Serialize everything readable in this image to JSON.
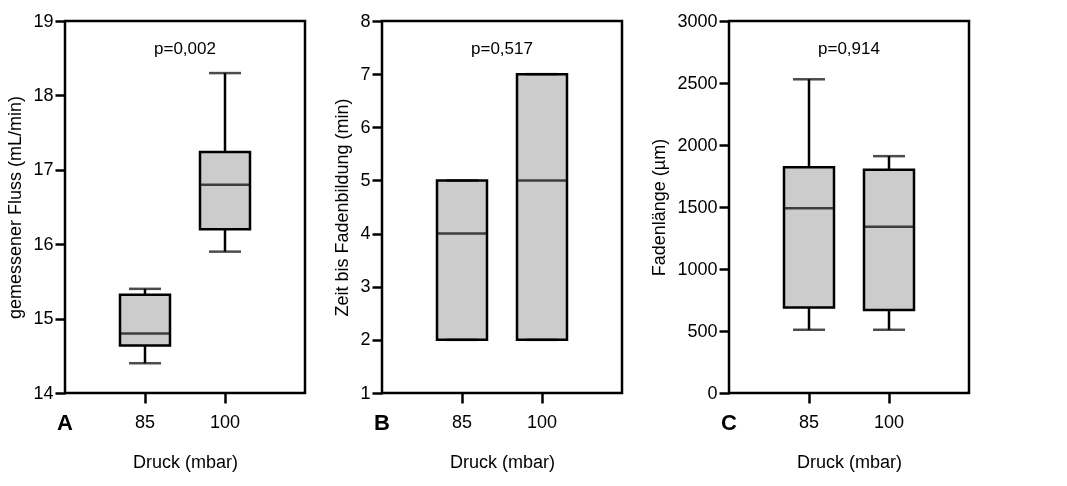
{
  "chart_data": [
    {
      "type": "box",
      "categories": [
        "85",
        "100"
      ],
      "xlabel": "Druck (mbar)",
      "ylabel": "gemessener Fluss (mL/min)",
      "ylim": [
        14,
        19
      ],
      "yticks": [
        14,
        15,
        16,
        17,
        18,
        19
      ],
      "grid": false,
      "annotations": [
        "p=0,002",
        "A"
      ],
      "series": [
        {
          "color": "#cccccc",
          "boxes": [
            {
              "low": 14.4,
              "q1": 14.64,
              "median": 14.8,
              "q3": 15.32,
              "high": 15.4
            },
            {
              "low": 15.9,
              "q1": 16.2,
              "median": 16.8,
              "q3": 17.24,
              "high": 18.3
            }
          ]
        }
      ]
    },
    {
      "type": "box",
      "categories": [
        "85",
        "100"
      ],
      "xlabel": "Druck (mbar)",
      "ylabel": "Zeit bis Fadenbildung (min)",
      "ylim": [
        1,
        8
      ],
      "yticks": [
        1,
        2,
        3,
        4,
        5,
        6,
        7,
        8
      ],
      "grid": false,
      "annotations": [
        "p=0,517",
        "B"
      ],
      "series": [
        {
          "color": "#cccccc",
          "boxes": [
            {
              "low": 2,
              "q1": 2,
              "median": 4,
              "q3": 5,
              "high": 5
            },
            {
              "low": 2,
              "q1": 2,
              "median": 5,
              "q3": 7,
              "high": 7
            }
          ]
        }
      ]
    },
    {
      "type": "box",
      "categories": [
        "85",
        "100"
      ],
      "xlabel": "Druck (mbar)",
      "ylabel": "Fadenlänge (µm)",
      "ylim": [
        0,
        3000
      ],
      "yticks": [
        0,
        500,
        1000,
        1500,
        2000,
        2500,
        3000
      ],
      "grid": false,
      "annotations": [
        "p=0,914",
        "C"
      ],
      "series": [
        {
          "color": "#cccccc",
          "boxes": [
            {
              "low": 510,
              "q1": 690,
              "median": 1490,
              "q3": 1820,
              "high": 2530
            },
            {
              "low": 510,
              "q1": 670,
              "median": 1340,
              "q3": 1800,
              "high": 1910
            }
          ]
        }
      ]
    }
  ]
}
